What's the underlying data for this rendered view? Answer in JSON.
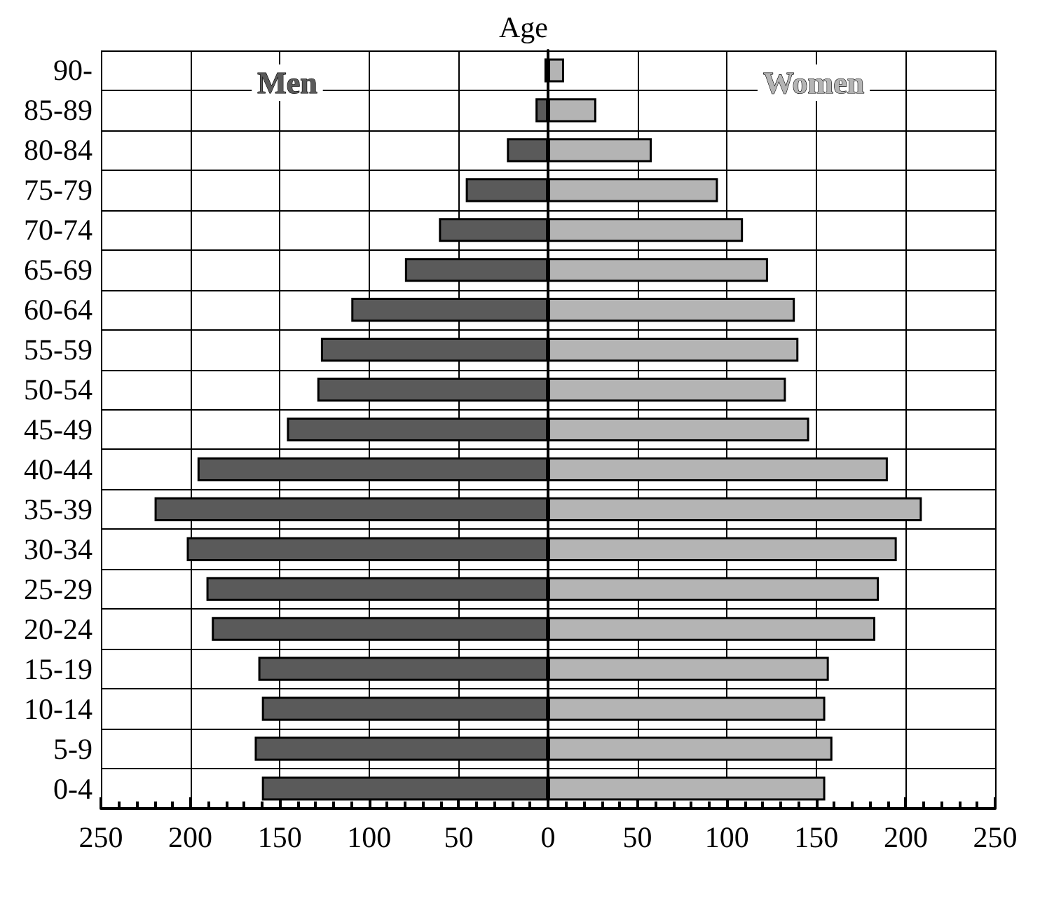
{
  "chart_data": {
    "type": "bar",
    "orientation": "horizontal",
    "ylabel": "Age",
    "categories": [
      "90-",
      "85-89",
      "80-84",
      "75-79",
      "70-74",
      "65-69",
      "60-64",
      "55-59",
      "50-54",
      "45-49",
      "40-44",
      "35-39",
      "30-34",
      "25-29",
      "20-24",
      "15-19",
      "10-14",
      "5-9",
      "0-4"
    ],
    "series": [
      {
        "name": "Men",
        "color": "#5a5a5a",
        "values": [
          -2,
          -7,
          -23,
          -46,
          -61,
          -80,
          -110,
          -127,
          -129,
          -146,
          -196,
          -220,
          -202,
          -191,
          -188,
          -162,
          -160,
          -164,
          -160
        ]
      },
      {
        "name": "Women",
        "color": "#b4b4b4",
        "values": [
          9,
          27,
          58,
          95,
          109,
          123,
          138,
          140,
          133,
          146,
          190,
          209,
          195,
          185,
          183,
          157,
          155,
          159,
          155
        ]
      }
    ],
    "xlim": [
      -250,
      250
    ],
    "xticks": [
      {
        "value": -250,
        "label": "250"
      },
      {
        "value": -200,
        "label": "200"
      },
      {
        "value": -150,
        "label": "150"
      },
      {
        "value": -100,
        "label": "100"
      },
      {
        "value": -50,
        "label": "50"
      },
      0,
      50,
      100,
      150,
      200,
      250
    ],
    "stacked": true,
    "grid": true,
    "legend": false
  }
}
